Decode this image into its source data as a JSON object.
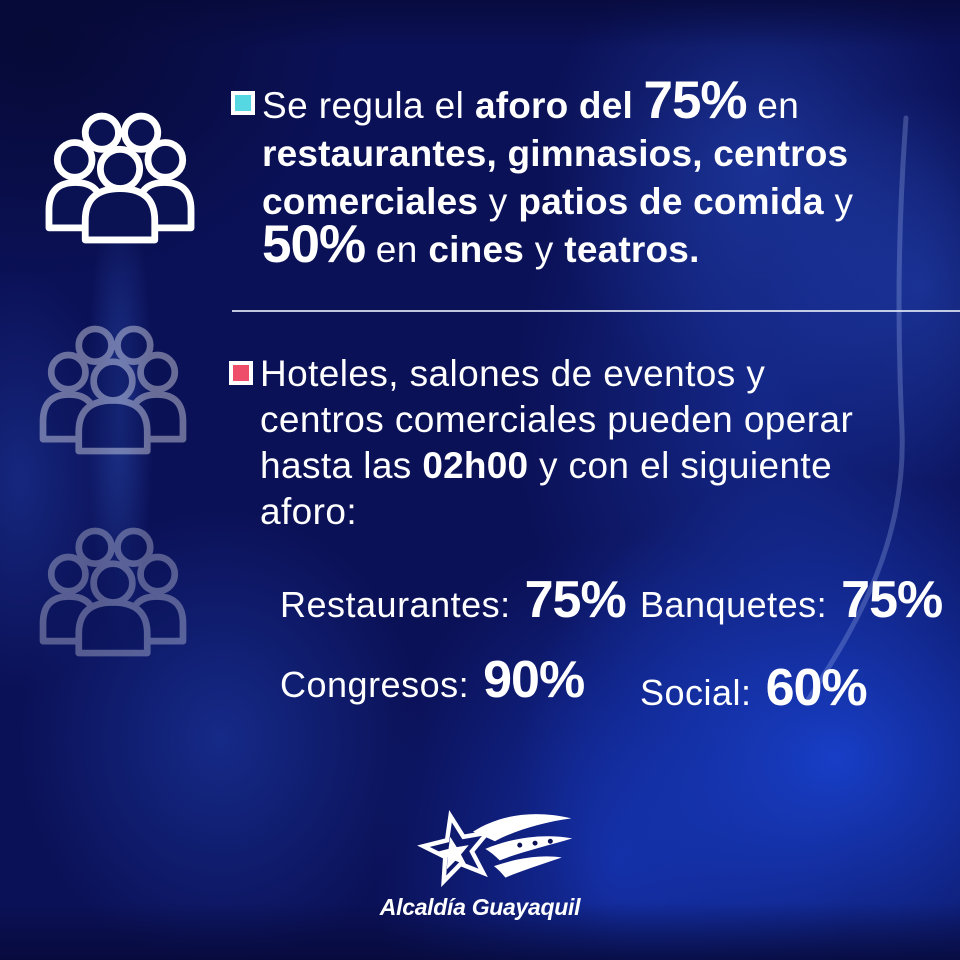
{
  "page": {
    "type": "infographic-poster",
    "language": "es",
    "colors": {
      "background_navy": "#0b1157",
      "bright_blue_patch": "#1a46da",
      "text_white": "#ffffff",
      "bullet1_marker": "#55d8e2",
      "bullet2_marker": "#ee4e6a",
      "divider": "#e1e8f6"
    }
  },
  "icons": {
    "left_column": "people-group-icon",
    "logo": "star-flag-icon"
  },
  "bullets": [
    {
      "marker_color": "#55d8e2",
      "lines": [
        [
          {
            "t": "Se regula el ",
            "s": "regular"
          },
          {
            "t": "aforo del ",
            "s": "bold"
          },
          {
            "t": "75%",
            "s": "big"
          },
          {
            "t": " en",
            "s": "regular"
          }
        ],
        [
          {
            "t": "restaurantes, gimnasios, centros",
            "s": "bold"
          }
        ],
        [
          {
            "t": "comerciales",
            "s": "bold"
          },
          {
            "t": " y ",
            "s": "regular"
          },
          {
            "t": "patios de comida",
            "s": "bold"
          },
          {
            "t": " y",
            "s": "regular"
          }
        ],
        [
          {
            "t": "50%",
            "s": "big"
          },
          {
            "t": " en ",
            "s": "regular"
          },
          {
            "t": "cines",
            "s": "bold"
          },
          {
            "t": " y ",
            "s": "regular"
          },
          {
            "t": "teatros.",
            "s": "bold"
          }
        ]
      ]
    },
    {
      "marker_color": "#ee4e6a",
      "lines": [
        [
          {
            "t": "Hoteles, salones de eventos y",
            "s": "regular"
          }
        ],
        [
          {
            "t": "centros comerciales pueden operar",
            "s": "regular"
          }
        ],
        [
          {
            "t": "hasta las ",
            "s": "regular"
          },
          {
            "t": "02h00",
            "s": "bold"
          },
          {
            "t": " y con el siguiente",
            "s": "regular"
          }
        ],
        [
          {
            "t": "aforo:",
            "s": "regular"
          }
        ]
      ]
    }
  ],
  "capacity_stats": [
    {
      "label": "Restaurantes:",
      "value": "75%"
    },
    {
      "label": "Banquetes:",
      "value": "75%"
    },
    {
      "label": "Congresos:",
      "value": "90%"
    },
    {
      "label": "Social:",
      "value": "60%"
    }
  ],
  "logo": {
    "name": "Alcaldía Guayaquil"
  }
}
